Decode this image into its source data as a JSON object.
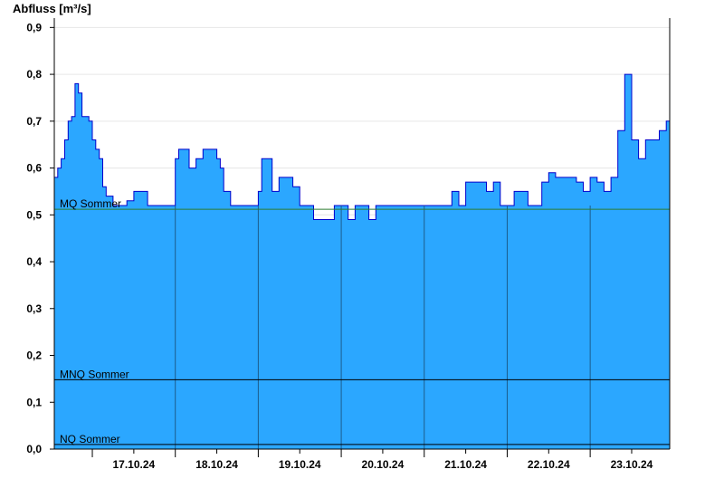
{
  "chart_data": {
    "type": "area",
    "title": "",
    "ylabel": "Abfluss [m³/s]",
    "xlabel": "",
    "ylim": [
      0,
      0.92
    ],
    "yticks": [
      0.0,
      0.1,
      0.2,
      0.3,
      0.4,
      0.5,
      0.6,
      0.7,
      0.8,
      0.9
    ],
    "ytick_labels": [
      "0,0",
      "0,1",
      "0,2",
      "0,3",
      "0,4",
      "0,5",
      "0,6",
      "0,7",
      "0,8",
      "0,9"
    ],
    "xlim": [
      "2024-10-16 13:00",
      "2024-10-23 23:00"
    ],
    "day_labels": [
      "17.10.24",
      "18.10.24",
      "19.10.24",
      "20.10.24",
      "21.10.24",
      "22.10.24",
      "23.10.24"
    ],
    "grid": true,
    "colors": {
      "fill": "#2ba7ff",
      "line": "#0000cc",
      "mq_line": "#2e7d32",
      "ref_line": "#000000"
    },
    "reference_lines": [
      {
        "name": "MQ Sommer",
        "value": 0.512
      },
      {
        "name": "MNQ Sommer",
        "value": 0.148
      },
      {
        "name": "NQ Sommer",
        "value": 0.01
      }
    ],
    "series": [
      {
        "time": [
          "2024-10-16 13:00",
          "2024-10-16 14:00",
          "2024-10-16 15:00",
          "2024-10-16 16:00",
          "2024-10-16 17:00",
          "2024-10-16 18:00",
          "2024-10-16 19:00",
          "2024-10-16 20:00",
          "2024-10-16 21:00",
          "2024-10-16 22:00",
          "2024-10-16 23:00",
          "2024-10-17 00:00",
          "2024-10-17 01:00",
          "2024-10-17 02:00",
          "2024-10-17 03:00",
          "2024-10-17 04:00",
          "2024-10-17 06:00",
          "2024-10-17 07:00",
          "2024-10-17 08:00",
          "2024-10-17 10:00",
          "2024-10-17 12:00",
          "2024-10-17 14:00",
          "2024-10-17 16:00",
          "2024-10-17 18:00",
          "2024-10-17 20:00",
          "2024-10-17 22:00",
          "2024-10-18 00:00",
          "2024-10-18 01:00",
          "2024-10-18 02:00",
          "2024-10-18 04:00",
          "2024-10-18 06:00",
          "2024-10-18 08:00",
          "2024-10-18 10:00",
          "2024-10-18 12:00",
          "2024-10-18 13:00",
          "2024-10-18 14:00",
          "2024-10-18 16:00",
          "2024-10-18 18:00",
          "2024-10-18 20:00",
          "2024-10-18 22:00",
          "2024-10-19 00:00",
          "2024-10-19 01:00",
          "2024-10-19 02:00",
          "2024-10-19 04:00",
          "2024-10-19 06:00",
          "2024-10-19 08:00",
          "2024-10-19 10:00",
          "2024-10-19 12:00",
          "2024-10-19 14:00",
          "2024-10-19 16:00",
          "2024-10-19 18:00",
          "2024-10-19 20:00",
          "2024-10-19 22:00",
          "2024-10-20 00:00",
          "2024-10-20 02:00",
          "2024-10-20 04:00",
          "2024-10-20 06:00",
          "2024-10-20 08:00",
          "2024-10-20 10:00",
          "2024-10-20 12:00",
          "2024-10-20 18:00",
          "2024-10-21 00:00",
          "2024-10-21 06:00",
          "2024-10-21 08:00",
          "2024-10-21 10:00",
          "2024-10-21 12:00",
          "2024-10-21 14:00",
          "2024-10-21 16:00",
          "2024-10-21 18:00",
          "2024-10-21 20:00",
          "2024-10-21 22:00",
          "2024-10-22 00:00",
          "2024-10-22 02:00",
          "2024-10-22 04:00",
          "2024-10-22 06:00",
          "2024-10-22 08:00",
          "2024-10-22 10:00",
          "2024-10-22 12:00",
          "2024-10-22 14:00",
          "2024-10-22 16:00",
          "2024-10-22 18:00",
          "2024-10-22 20:00",
          "2024-10-22 22:00",
          "2024-10-23 00:00",
          "2024-10-23 01:00",
          "2024-10-23 02:00",
          "2024-10-23 04:00",
          "2024-10-23 06:00",
          "2024-10-23 08:00",
          "2024-10-23 10:00",
          "2024-10-23 12:00",
          "2024-10-23 14:00",
          "2024-10-23 16:00",
          "2024-10-23 18:00",
          "2024-10-23 20:00",
          "2024-10-23 22:00",
          "2024-10-23 23:00"
        ],
        "values": [
          0.58,
          0.6,
          0.62,
          0.66,
          0.7,
          0.71,
          0.78,
          0.76,
          0.71,
          0.71,
          0.7,
          0.66,
          0.64,
          0.62,
          0.56,
          0.54,
          0.52,
          0.52,
          0.52,
          0.53,
          0.55,
          0.55,
          0.52,
          0.52,
          0.52,
          0.52,
          0.62,
          0.64,
          0.64,
          0.6,
          0.62,
          0.64,
          0.64,
          0.62,
          0.6,
          0.55,
          0.52,
          0.52,
          0.52,
          0.52,
          0.55,
          0.62,
          0.62,
          0.55,
          0.58,
          0.58,
          0.56,
          0.52,
          0.52,
          0.49,
          0.49,
          0.49,
          0.52,
          0.52,
          0.49,
          0.52,
          0.52,
          0.49,
          0.52,
          0.52,
          0.52,
          0.52,
          0.52,
          0.55,
          0.52,
          0.57,
          0.57,
          0.57,
          0.55,
          0.57,
          0.52,
          0.52,
          0.55,
          0.55,
          0.52,
          0.52,
          0.57,
          0.59,
          0.58,
          0.58,
          0.58,
          0.57,
          0.55,
          0.58,
          0.58,
          0.57,
          0.55,
          0.58,
          0.68,
          0.8,
          0.66,
          0.62,
          0.66,
          0.66,
          0.68,
          0.7,
          0.72
        ]
      }
    ]
  }
}
